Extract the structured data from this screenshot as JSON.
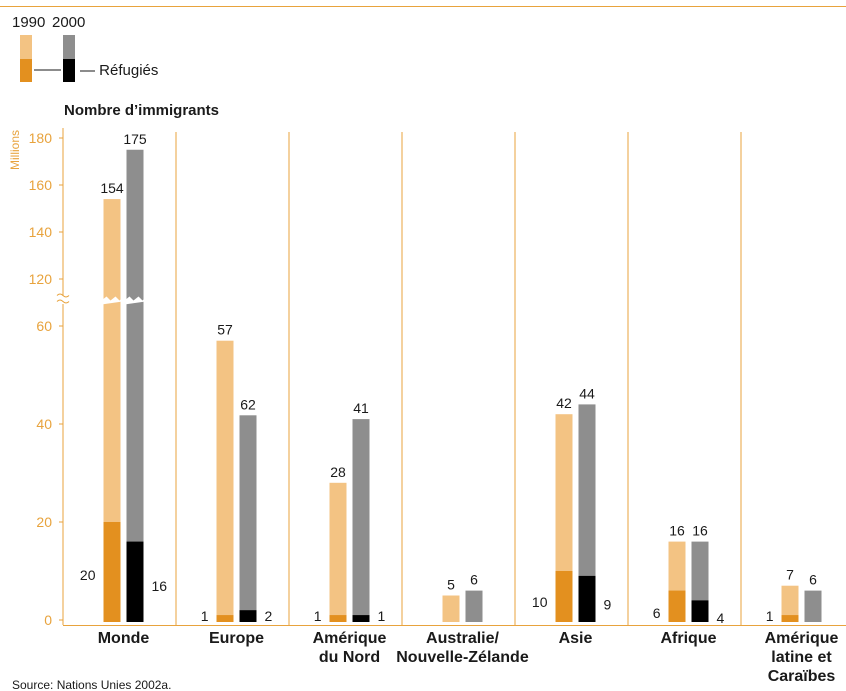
{
  "chart_data": {
    "type": "bar",
    "title": "Nombre d’immigrants",
    "ylabel": "Millions",
    "y_scale": "broken",
    "lower_ylim": [
      0,
      60
    ],
    "upper_ylim": [
      120,
      180
    ],
    "yticks": [
      0,
      20,
      40,
      60,
      120,
      140,
      160,
      180
    ],
    "legend": {
      "years": [
        "1990",
        "2000"
      ],
      "refugees_label": "— Réfugiés",
      "placement": "top-left"
    },
    "colors": {
      "total_1990": "#f3c383",
      "total_2000": "#8e8e8e",
      "refugees_1990": "#e3901f",
      "refugees_2000": "#000000",
      "accent": "#e8a33d"
    },
    "categories": [
      "Monde",
      "Europe",
      "Amérique du Nord",
      "Australie/ Nouvelle-Zélande",
      "Asie",
      "Afrique",
      "Amérique latine et Caraïbes"
    ],
    "category_lines": [
      [
        "Monde"
      ],
      [
        "Europe"
      ],
      [
        "Amérique",
        "du Nord"
      ],
      [
        "Australie/",
        "Nouvelle-Zélande"
      ],
      [
        "Asie"
      ],
      [
        "Afrique"
      ],
      [
        "Amérique",
        "latine et",
        "Caraïbes"
      ]
    ],
    "series": [
      {
        "year": "1990",
        "total": [
          154,
          57,
          28,
          5,
          42,
          16,
          7
        ],
        "refugees": [
          20,
          1,
          1,
          null,
          10,
          6,
          1
        ]
      },
      {
        "year": "2000",
        "total": [
          175,
          62,
          41,
          6,
          44,
          16,
          6
        ],
        "refugees": [
          16,
          2,
          1,
          null,
          9,
          4,
          null
        ]
      }
    ],
    "source": "Source: Nations Unies 2002a."
  }
}
